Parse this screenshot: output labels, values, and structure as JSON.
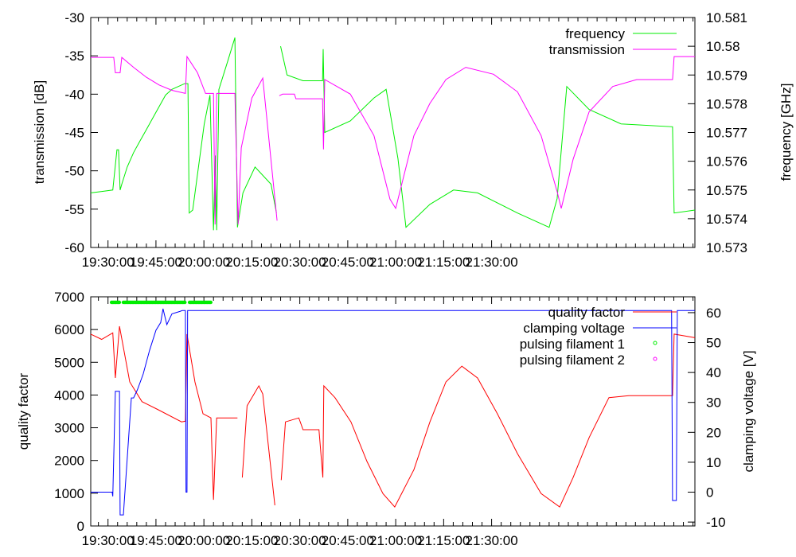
{
  "chart_data": [
    {
      "type": "line",
      "xlim_minutes_after_19h": [
        24.6,
        213.6
      ],
      "x_ticks": [
        "19:30:00",
        "19:45:00",
        "20:00:00",
        "20:15:00",
        "20:30:00",
        "20:45:00",
        "21:00:00",
        "21:15:00",
        "21:30:00"
      ],
      "x_tick_values": [
        30,
        45,
        60,
        75,
        90,
        105,
        120,
        135,
        150
      ],
      "ylabel": "transmission [dB]",
      "ylim": [
        -60,
        -30
      ],
      "y_ticks": [
        "-30",
        "-35",
        "-40",
        "-45",
        "-50",
        "-55",
        "-60"
      ],
      "y_tick_values": [
        -30,
        -35,
        -40,
        -45,
        -50,
        -55,
        -60
      ],
      "y2label": "frequency [GHz]",
      "y2lim": [
        10.573,
        10.581
      ],
      "y2_ticks": [
        "10.581",
        "10.58",
        "10.579",
        "10.578",
        "10.577",
        "10.576",
        "10.575",
        "10.574",
        "10.573"
      ],
      "y2_tick_values": [
        10.581,
        10.58,
        10.579,
        10.578,
        10.577,
        10.576,
        10.575,
        10.574,
        10.573
      ],
      "legend_position": "top-right",
      "series": [
        {
          "name": "frequency",
          "axis": "y2",
          "color": "#00ee00",
          "x": [
            24.6,
            31.5,
            32.8,
            33.3,
            33.8,
            34.3,
            36,
            38,
            40,
            42,
            44,
            46,
            48,
            50,
            52,
            54,
            55.0,
            55.4,
            56.5,
            60.1,
            61.9,
            63.0,
            63.6,
            64.0,
            64.7,
            67.5,
            69.7,
            70.5,
            72.2,
            76,
            81,
            82.7,
            null,
            84.0,
            86,
            91,
            97.1,
            97.3,
            97.8,
            105.8,
            113.2,
            117,
            120.7,
            123.2,
            130.7,
            138.1,
            145.6,
            158.1,
            168.0,
            170.5,
            173.5,
            180.5,
            190.5,
            206.6,
            207.1,
            213.6
          ],
          "y": [
            10.5749,
            10.575,
            10.5764,
            10.5764,
            10.575,
            10.5752,
            10.5758,
            10.5763,
            10.5767,
            10.5771,
            10.5775,
            10.5779,
            10.5783,
            10.5785,
            10.5786,
            10.5787,
            10.5787,
            10.5742,
            10.5743,
            10.5773,
            10.5783,
            10.5736,
            10.5762,
            10.5736,
            10.5785,
            10.5795,
            10.5803,
            10.5737,
            10.5749,
            10.5758,
            10.5752,
            10.5742,
            null,
            10.58,
            10.579,
            10.5788,
            10.5788,
            10.5799,
            10.577,
            10.5774,
            10.5782,
            10.5785,
            10.5761,
            10.5737,
            10.5745,
            10.575,
            10.5749,
            10.5742,
            10.5737,
            10.5747,
            10.5786,
            10.5778,
            10.5773,
            10.5772,
            10.5742,
            10.5743
          ]
        },
        {
          "name": "transmission",
          "axis": "y",
          "color": "#ff00ff",
          "x": [
            24.6,
            31.8,
            32.3,
            33.8,
            34.3,
            38,
            42,
            46.0,
            50,
            54.2,
            54.7,
            58,
            60.5,
            63.0,
            63.5,
            64.0,
            64.7,
            69.7,
            70.7,
            71.7,
            75,
            78.4,
            82.9,
            null,
            83.6,
            84.6,
            88.3,
            88.8,
            97.1,
            97.4,
            97.8,
            105.8,
            113.2,
            118.2,
            120.0,
            125.7,
            130.7,
            135.7,
            141.9,
            150.6,
            158.1,
            165.5,
            170.5,
            171.8,
            175.5,
            180.5,
            187.9,
            195.4,
            206.6,
            207.1,
            213.6
          ],
          "y": [
            -35.2,
            -35.2,
            -37.2,
            -37.2,
            -35.2,
            -36.5,
            -37.8,
            -38.8,
            -39.5,
            -39.9,
            -35.1,
            -37.2,
            -39.9,
            -39.9,
            -57.0,
            -39.9,
            -39.9,
            -39.9,
            -57.0,
            -47.0,
            -40.5,
            -37.9,
            -56.5,
            null,
            -40.2,
            -40.0,
            -40.0,
            -40.6,
            -40.6,
            -47.2,
            -38.1,
            -40.0,
            -45.4,
            -53.7,
            -54.9,
            -45.4,
            -41.2,
            -38.1,
            -36.5,
            -37.4,
            -39.7,
            -45.4,
            -52.7,
            -54.9,
            -48.5,
            -42.3,
            -39.0,
            -38.1,
            -38.1,
            -35.1,
            -35.1
          ]
        }
      ]
    },
    {
      "type": "line",
      "xlim_minutes_after_19h": [
        24.6,
        213.6
      ],
      "x_ticks": [
        "19:30:00",
        "19:45:00",
        "20:00:00",
        "20:15:00",
        "20:30:00",
        "20:45:00",
        "21:00:00",
        "21:15:00",
        "21:30:00"
      ],
      "x_tick_values": [
        30,
        45,
        60,
        75,
        90,
        105,
        120,
        135,
        150
      ],
      "ylabel": "quality factor",
      "ylim": [
        0,
        7000
      ],
      "y_ticks": [
        "0",
        "1000",
        "2000",
        "3000",
        "4000",
        "5000",
        "6000",
        "7000"
      ],
      "y_tick_values": [
        0,
        1000,
        2000,
        3000,
        4000,
        5000,
        6000,
        7000
      ],
      "y2label": "clamping voltage [V]",
      "y2lim": [
        -11.3,
        65.3
      ],
      "y2_ticks": [
        "-10",
        "0",
        "10",
        "20",
        "30",
        "40",
        "50",
        "60"
      ],
      "y2_tick_values": [
        -10,
        0,
        10,
        20,
        30,
        40,
        50,
        60
      ],
      "legend_position": "top-right",
      "series": [
        {
          "name": "quality factor",
          "axis": "y",
          "color": "#ff0000",
          "x": [
            24.6,
            28,
            31.5,
            32.3,
            33.6,
            36.8,
            40.6,
            45.5,
            53.0,
            54.2,
            54.7,
            57.2,
            59.7,
            62.2,
            63.0,
            64.0,
            67.2,
            70.5,
            null,
            72.0,
            73.5,
            77.2,
            78.4,
            82.2,
            null,
            84.2,
            85.5,
            89.7,
            91.0,
            96.0,
            97.2,
            97.5,
            101.0,
            106.0,
            111.0,
            116.0,
            119.7,
            125.7,
            130.7,
            135.7,
            140.7,
            145.6,
            151.8,
            158.1,
            165.5,
            171.3,
            175.5,
            180.5,
            186.7,
            192.9,
            206.6,
            207.1,
            213.6
          ],
          "y": [
            5860,
            5700,
            5900,
            4520,
            6100,
            4400,
            3800,
            3560,
            3180,
            3200,
            5860,
            4400,
            3430,
            3300,
            800,
            3300,
            3300,
            3300,
            null,
            1480,
            3670,
            4280,
            4030,
            630,
            null,
            1400,
            3180,
            3300,
            2940,
            2940,
            1480,
            4280,
            3920,
            3180,
            1970,
            990,
            580,
            1720,
            3180,
            4400,
            4880,
            4520,
            3430,
            2210,
            990,
            580,
            1480,
            2700,
            3920,
            3980,
            3980,
            5860,
            5750
          ]
        },
        {
          "name": "clamping voltage",
          "axis": "y2",
          "color": "#0000ff",
          "x": [
            24.6,
            31.3,
            31.5,
            32.3,
            33.6,
            33.8,
            34.8,
            37.3,
            38.0,
            39.2,
            41.0,
            43.0,
            45.0,
            46.5,
            47.2,
            48.4,
            50.0,
            52.5,
            53.2,
            53.7,
            54.2,
            54.4,
            54.7,
            54.9,
            206.3,
            206.6,
            207.8,
            208.1,
            213.6
          ],
          "y": [
            0,
            0,
            -1.4,
            33.7,
            33.7,
            -7.6,
            -7.6,
            31.5,
            31.5,
            34.2,
            39.5,
            47.4,
            54.1,
            56.7,
            61.3,
            56.0,
            59.6,
            60.4,
            60.7,
            60.7,
            60.7,
            0,
            0,
            60.7,
            60.7,
            -2.8,
            -2.8,
            60.7,
            60.7
          ]
        },
        {
          "name": "pulsing filament 1",
          "axis": "y",
          "color": "#00ee00",
          "style": "points",
          "segments": [
            [
              31.1,
              33.6
            ],
            [
              34.8,
              54.2
            ],
            [
              55.5,
              62.2
            ]
          ],
          "y": 6830
        },
        {
          "name": "pulsing filament 2",
          "axis": "y",
          "color": "#ff00ff",
          "style": "points",
          "segments": [],
          "y": 6830
        }
      ]
    }
  ]
}
